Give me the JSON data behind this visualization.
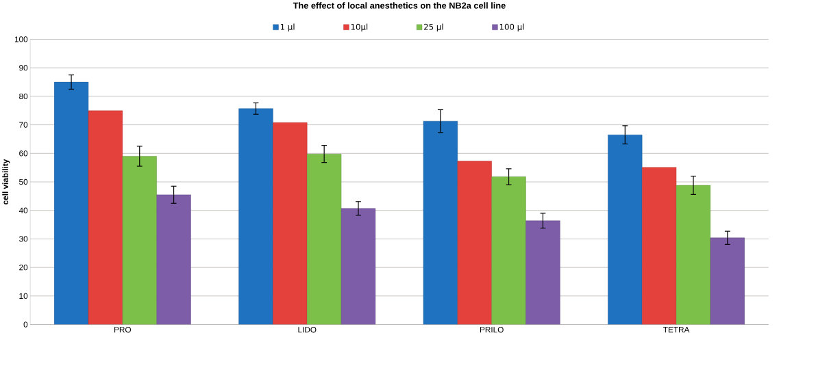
{
  "chart_data": {
    "type": "bar",
    "title": "The effect of local anesthetics on the NB2a cell line",
    "ylabel": "cell viability",
    "categories": [
      "PRO",
      "LIDO",
      "PRILO",
      "TETRA"
    ],
    "series": [
      {
        "name": "1 µl",
        "color": "#1f72c0",
        "values": [
          85,
          75.7,
          71.3,
          66.5
        ],
        "errors": [
          2.5,
          2,
          4,
          3.2
        ]
      },
      {
        "name": "10µl",
        "color": "#e4403c",
        "values": [
          75,
          70.8,
          57.3,
          55.1
        ]
      },
      {
        "name": "25 µl",
        "color": "#7cc04a",
        "values": [
          59,
          59.8,
          51.8,
          48.8
        ],
        "errors": [
          3.5,
          3,
          2.8,
          3.2
        ]
      },
      {
        "name": "100 µl",
        "color": "#7d5ca8",
        "values": [
          45.5,
          40.7,
          36.4,
          30.4
        ],
        "errors": [
          3,
          2.4,
          2.6,
          2.3
        ]
      }
    ],
    "ylim": [
      0,
      100
    ],
    "yticks": [
      0,
      10,
      20,
      30,
      40,
      50,
      60,
      70,
      80,
      90,
      100
    ],
    "grid": "y",
    "legend": "top"
  }
}
